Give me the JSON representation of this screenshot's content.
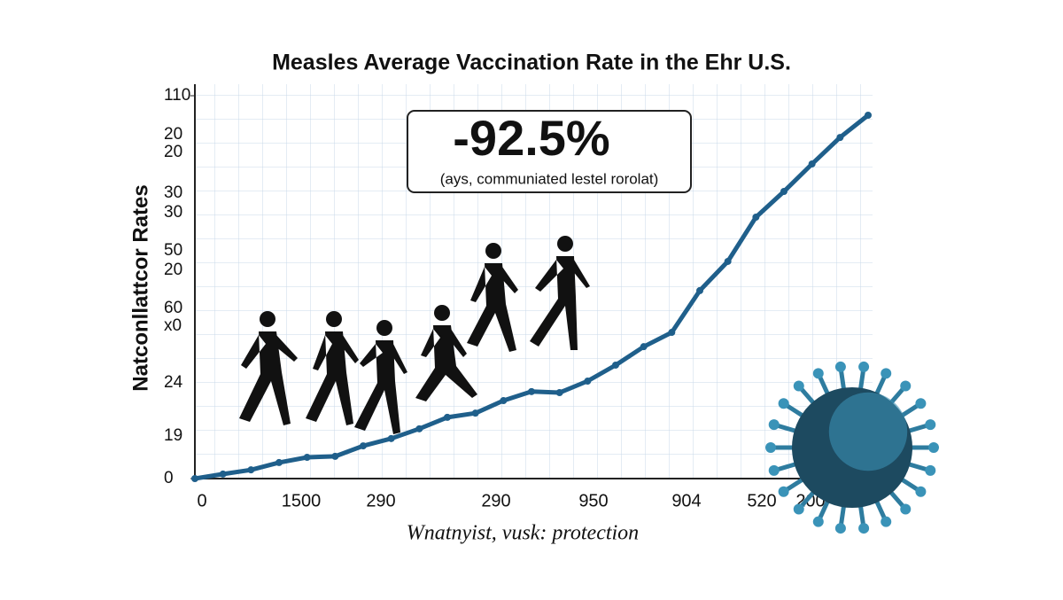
{
  "chart_data": {
    "type": "line",
    "title": "Measles Average Vaccination Rate in the Ehr U.S.",
    "y_label": "Natconllattcor Rates",
    "x_label": "Wnatnyist, vusk: protection",
    "annotation": {
      "value": "-92.5%",
      "note": "(ays, communiated lestel rorolat)"
    },
    "ylim": [
      0,
      110
    ],
    "yticks": [
      0,
      110
    ],
    "y_labels": [
      "20",
      "20",
      "30",
      "30",
      "50",
      "20",
      "60",
      "x0",
      "24",
      "19"
    ],
    "x_labels": [
      "0",
      "1500",
      "290",
      "290",
      "950",
      "904",
      "520",
      "200"
    ],
    "grid": true,
    "series": [
      {
        "color": "#1f5f8b",
        "values": [
          0,
          1.3,
          2.5,
          4.6,
          6.1,
          6.4,
          9.4,
          11.5,
          14.3,
          17.6,
          18.8,
          22.4,
          25,
          24.7,
          28,
          32.6,
          37.9,
          42,
          54,
          62.4,
          75.1,
          82.5,
          90.4,
          98,
          104.4
        ]
      }
    ]
  }
}
